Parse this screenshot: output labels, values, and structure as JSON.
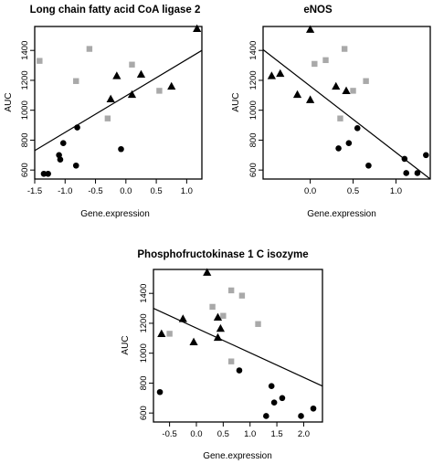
{
  "chart_data": [
    {
      "type": "scatter",
      "title": "Long chain fatty acid CoA ligase 2",
      "xlabel": "Gene.expression",
      "ylabel": "AUC",
      "xlim": [
        -1.5,
        1.25
      ],
      "ylim": [
        540,
        1560
      ],
      "xticks": [
        "-1.5",
        "-1.0",
        "-0.5",
        "0.0",
        "0.5",
        "1.0"
      ],
      "yticks": [
        "600",
        "800",
        "1000",
        "1200",
        "1400"
      ],
      "regression_line": [
        [
          -1.5,
          730
        ],
        [
          1.25,
          1400
        ]
      ],
      "series": [
        {
          "marker": "square",
          "color": "#a9a9a9",
          "points": [
            [
              -1.42,
              1330
            ],
            [
              -0.82,
              1195
            ],
            [
              -0.6,
              1410
            ],
            [
              -0.3,
              945
            ],
            [
              0.1,
              1305
            ],
            [
              0.55,
              1130
            ]
          ]
        },
        {
          "marker": "triangle",
          "color": "#000000",
          "points": [
            [
              -0.25,
              1075
            ],
            [
              -0.15,
              1230
            ],
            [
              0.1,
              1105
            ],
            [
              0.25,
              1240
            ],
            [
              0.75,
              1160
            ],
            [
              1.17,
              1545
            ]
          ]
        },
        {
          "marker": "circle",
          "color": "#000000",
          "points": [
            [
              -1.35,
              575
            ],
            [
              -1.28,
              575
            ],
            [
              -1.1,
              700
            ],
            [
              -1.08,
              670
            ],
            [
              -1.03,
              780
            ],
            [
              -0.8,
              885
            ],
            [
              -0.82,
              630
            ],
            [
              -0.08,
              740
            ]
          ]
        }
      ]
    },
    {
      "type": "scatter",
      "title": "eNOS",
      "xlabel": "Gene.expression",
      "ylabel": "AUC",
      "xlim": [
        -0.55,
        1.4
      ],
      "ylim": [
        540,
        1560
      ],
      "xticks": [
        "0.0",
        "0.5",
        "1.0"
      ],
      "yticks": [
        "600",
        "800",
        "1000",
        "1200",
        "1400"
      ],
      "regression_line": [
        [
          -0.55,
          1405
        ],
        [
          1.4,
          540
        ]
      ],
      "series": [
        {
          "marker": "square",
          "color": "#a9a9a9",
          "points": [
            [
              0.05,
              1310
            ],
            [
              0.18,
              1335
            ],
            [
              0.35,
              945
            ],
            [
              0.4,
              1410
            ],
            [
              0.5,
              1130
            ],
            [
              0.65,
              1195
            ]
          ]
        },
        {
          "marker": "triangle",
          "color": "#000000",
          "points": [
            [
              -0.45,
              1230
            ],
            [
              -0.35,
              1245
            ],
            [
              -0.15,
              1105
            ],
            [
              0.0,
              1540
            ],
            [
              0.0,
              1070
            ],
            [
              0.3,
              1160
            ],
            [
              0.42,
              1130
            ]
          ]
        },
        {
          "marker": "circle",
          "color": "#000000",
          "points": [
            [
              0.33,
              745
            ],
            [
              0.45,
              780
            ],
            [
              0.55,
              880
            ],
            [
              0.68,
              630
            ],
            [
              1.1,
              675
            ],
            [
              1.12,
              580
            ],
            [
              1.25,
              580
            ],
            [
              1.35,
              700
            ]
          ]
        }
      ]
    },
    {
      "type": "scatter",
      "title": "Phosphofructokinase 1 C isozyme",
      "xlabel": "Gene.expression",
      "ylabel": "AUC",
      "xlim": [
        -0.8,
        2.35
      ],
      "ylim": [
        540,
        1560
      ],
      "xticks": [
        "-0.5",
        "0.0",
        "0.5",
        "1.0",
        "1.5",
        "2.0"
      ],
      "yticks": [
        "600",
        "800",
        "1000",
        "1200",
        "1400"
      ],
      "regression_line": [
        [
          -0.8,
          1300
        ],
        [
          2.35,
          780
        ]
      ],
      "series": [
        {
          "marker": "square",
          "color": "#a9a9a9",
          "points": [
            [
              -0.5,
              1130
            ],
            [
              0.3,
              1310
            ],
            [
              0.5,
              1250
            ],
            [
              0.65,
              1420
            ],
            [
              0.85,
              1385
            ],
            [
              0.65,
              945
            ],
            [
              1.15,
              1195
            ]
          ]
        },
        {
          "marker": "triangle",
          "color": "#000000",
          "points": [
            [
              -0.65,
              1130
            ],
            [
              -0.25,
              1230
            ],
            [
              -0.05,
              1075
            ],
            [
              0.2,
              1540
            ],
            [
              0.4,
              1240
            ],
            [
              0.45,
              1165
            ],
            [
              0.4,
              1105
            ]
          ]
        },
        {
          "marker": "circle",
          "color": "#000000",
          "points": [
            [
              -0.68,
              740
            ],
            [
              0.8,
              885
            ],
            [
              1.3,
              580
            ],
            [
              1.4,
              780
            ],
            [
              1.45,
              670
            ],
            [
              1.6,
              700
            ],
            [
              1.95,
              580
            ],
            [
              2.18,
              630
            ]
          ]
        }
      ]
    }
  ]
}
